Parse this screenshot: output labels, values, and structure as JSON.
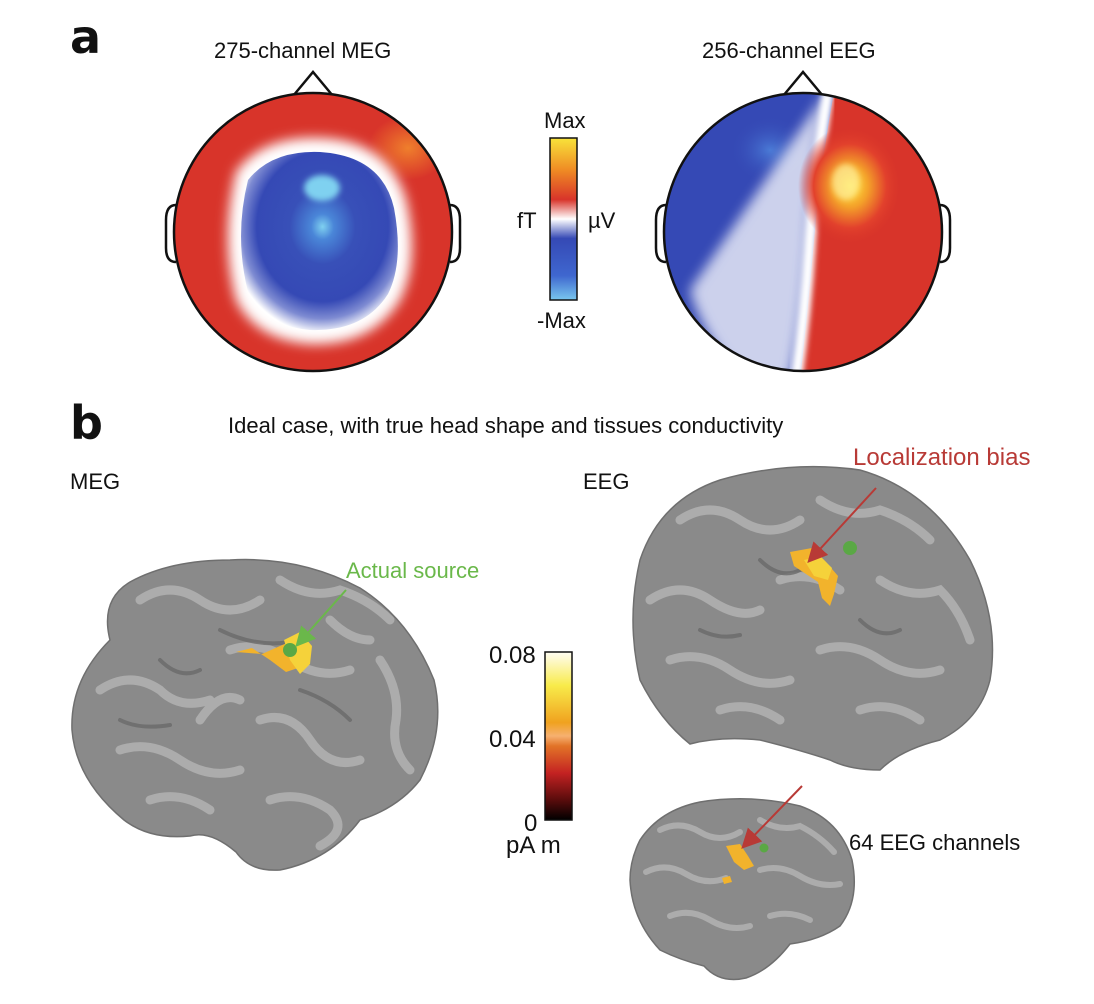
{
  "panel_a": {
    "letter": "a",
    "meg_title": "275-channel MEG",
    "eeg_title": "256-channel EEG",
    "colorbar": {
      "max_label": "Max",
      "min_label": "-Max",
      "left_unit": "fT",
      "right_unit": "µV"
    }
  },
  "panel_b": {
    "letter": "b",
    "subtitle": "Ideal case, with true head shape and tissues conductivity",
    "meg_label": "MEG",
    "eeg_label": "EEG",
    "actual_source": "Actual source",
    "localization_bias": "Localization bias",
    "eeg64_label": "64 EEG channels",
    "colorbar": {
      "top": "0.08",
      "mid": "0.04",
      "bottom": "0",
      "unit": "pA m"
    }
  },
  "colors": {
    "annotation_green": "#6ab84a",
    "annotation_red": "#b83a36",
    "brain_gray": "#8a8a8a",
    "topo_red": "#d8342a",
    "topo_blue": "#3549b5"
  }
}
